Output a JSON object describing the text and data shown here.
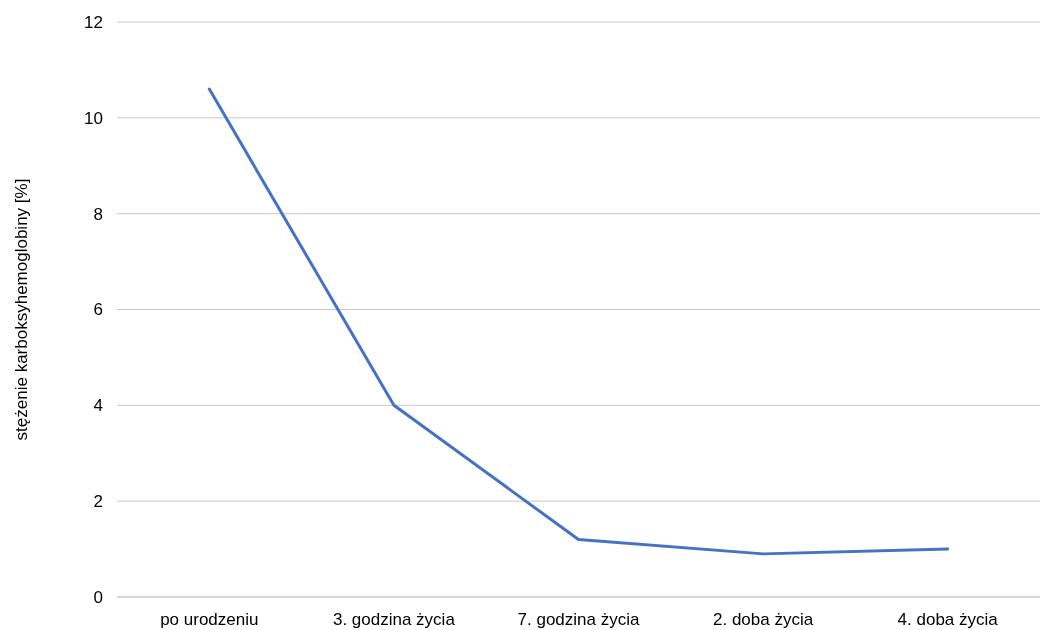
{
  "chart_data": {
    "type": "line",
    "ylabel": "stężenie karboksyhemoglobiny [%]",
    "categories": [
      "po urodzeniu",
      "3. godzina życia",
      "7. godzina życia",
      "2. doba życia",
      "4. doba życia"
    ],
    "series": [
      {
        "color": "#4472c4",
        "values": [
          10.6,
          4.0,
          1.2,
          0.9,
          1.0
        ]
      }
    ],
    "ylim": [
      0,
      12
    ],
    "yticks": [
      0,
      2,
      4,
      6,
      8,
      10,
      12
    ],
    "grid": "y",
    "marker": "none",
    "line_style": "solid"
  }
}
